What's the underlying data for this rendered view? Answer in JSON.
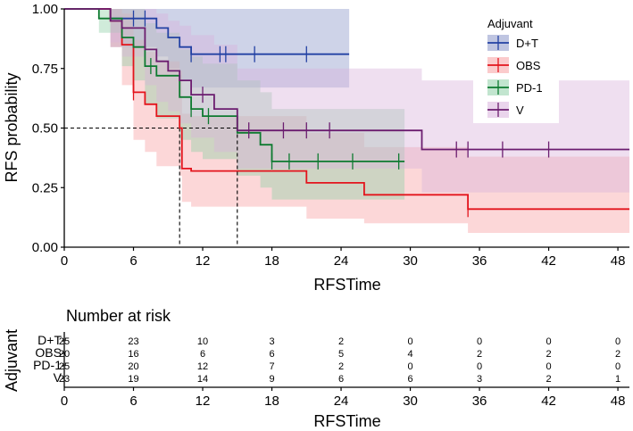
{
  "chart_data": {
    "type": "line",
    "subtype": "kaplan-meier",
    "xlabel": "RFSTime",
    "ylabel": "RFS probability",
    "xlim": [
      0,
      49
    ],
    "ylim": [
      0,
      1
    ],
    "xticks": [
      "0",
      "6",
      "12",
      "18",
      "24",
      "30",
      "36",
      "42",
      "48"
    ],
    "yticks": [
      "0.00",
      "0.25",
      "0.50",
      "0.75",
      "1.00"
    ],
    "legend": {
      "title": "Adjuvant",
      "position": "top-right"
    },
    "median_lines": [
      {
        "y": 0.5,
        "x_end": 15
      },
      {
        "x": 10,
        "y_top": 0.5
      },
      {
        "x": 15,
        "y_top": 0.5
      }
    ],
    "series": [
      {
        "name": "D+T",
        "color": "#2341a3",
        "fill": "#8a96c9",
        "steps": [
          [
            0,
            1
          ],
          [
            4,
            0.96
          ],
          [
            8,
            0.92
          ],
          [
            9,
            0.88
          ],
          [
            10,
            0.84
          ],
          [
            11,
            0.81
          ],
          [
            24,
            0.81
          ]
        ],
        "x_end": 24.7,
        "band": [
          [
            0,
            1,
            1
          ],
          [
            4,
            1,
            0.84
          ],
          [
            8,
            1,
            0.8
          ],
          [
            9,
            1,
            0.75
          ],
          [
            10,
            1,
            0.7
          ],
          [
            11,
            1,
            0.67
          ],
          [
            24,
            1,
            0.67
          ]
        ],
        "censors": [
          6,
          7,
          11,
          13.5,
          14,
          16.5,
          21
        ]
      },
      {
        "name": "OBS",
        "color": "#e3141c",
        "fill": "#f8a0a3",
        "steps": [
          [
            0,
            1
          ],
          [
            4,
            0.95
          ],
          [
            5,
            0.85
          ],
          [
            6,
            0.65
          ],
          [
            7,
            0.6
          ],
          [
            8,
            0.55
          ],
          [
            10,
            0.5
          ],
          [
            10.2,
            0.33
          ],
          [
            11,
            0.32
          ],
          [
            21,
            0.27
          ],
          [
            26,
            0.22
          ],
          [
            35,
            0.16
          ],
          [
            49,
            0.16
          ]
        ],
        "x_end": 49,
        "band": [
          [
            0,
            1,
            1
          ],
          [
            4,
            1,
            0.84
          ],
          [
            5,
            0.98,
            0.68
          ],
          [
            6,
            0.87,
            0.45
          ],
          [
            7,
            0.82,
            0.4
          ],
          [
            8,
            0.78,
            0.34
          ],
          [
            10,
            0.74,
            0.3
          ],
          [
            10.2,
            0.56,
            0.19
          ],
          [
            11,
            0.55,
            0.17
          ],
          [
            21,
            0.48,
            0.12
          ],
          [
            26,
            0.42,
            0.1
          ],
          [
            35,
            0.38,
            0.06
          ],
          [
            49,
            0.38,
            0.06
          ]
        ],
        "censors": [
          6,
          35
        ]
      },
      {
        "name": "PD-1",
        "color": "#0e7a30",
        "fill": "#8fd0a8",
        "steps": [
          [
            0,
            1
          ],
          [
            3,
            0.96
          ],
          [
            5,
            0.88
          ],
          [
            6,
            0.84
          ],
          [
            7,
            0.76
          ],
          [
            8,
            0.72
          ],
          [
            10,
            0.63
          ],
          [
            11,
            0.58
          ],
          [
            12,
            0.55
          ],
          [
            15,
            0.48
          ],
          [
            17,
            0.43
          ],
          [
            18,
            0.36
          ],
          [
            29,
            0.36
          ]
        ],
        "x_end": 29.5,
        "band": [
          [
            0,
            1,
            1
          ],
          [
            3,
            1,
            0.9
          ],
          [
            5,
            1,
            0.76
          ],
          [
            6,
            1,
            0.7
          ],
          [
            7,
            0.94,
            0.6
          ],
          [
            8,
            0.9,
            0.54
          ],
          [
            10,
            0.83,
            0.45
          ],
          [
            11,
            0.8,
            0.4
          ],
          [
            12,
            0.77,
            0.37
          ],
          [
            15,
            0.7,
            0.3
          ],
          [
            17,
            0.65,
            0.25
          ],
          [
            18,
            0.58,
            0.2
          ],
          [
            29,
            0.58,
            0.2
          ]
        ],
        "censors": [
          7.5,
          11,
          12.5,
          18,
          19.5,
          22,
          25,
          29
        ]
      },
      {
        "name": "V",
        "color": "#6b1d6f",
        "fill": "#d9b2dc",
        "steps": [
          [
            0,
            1
          ],
          [
            4,
            0.95
          ],
          [
            5,
            0.92
          ],
          [
            7,
            0.83
          ],
          [
            8,
            0.78
          ],
          [
            9,
            0.74
          ],
          [
            10,
            0.7
          ],
          [
            11,
            0.64
          ],
          [
            13,
            0.58
          ],
          [
            15,
            0.49
          ],
          [
            31,
            0.41
          ],
          [
            49,
            0.41
          ]
        ],
        "x_end": 49,
        "band": [
          [
            0,
            1,
            1
          ],
          [
            4,
            1,
            0.86
          ],
          [
            5,
            1,
            0.8
          ],
          [
            7,
            1,
            0.68
          ],
          [
            8,
            0.98,
            0.61
          ],
          [
            9,
            0.95,
            0.57
          ],
          [
            10,
            0.93,
            0.52
          ],
          [
            11,
            0.89,
            0.46
          ],
          [
            13,
            0.85,
            0.4
          ],
          [
            15,
            0.75,
            0.33
          ],
          [
            31,
            0.7,
            0.23
          ],
          [
            49,
            0.7,
            0.23
          ]
        ],
        "censors": [
          12,
          16,
          19,
          21,
          23,
          34,
          35,
          38,
          42
        ]
      }
    ],
    "risk_table": {
      "title": "Number at risk",
      "ylabel": "Adjuvant",
      "xlabel": "RFSTime",
      "times": [
        0,
        6,
        12,
        18,
        24,
        30,
        36,
        42,
        48
      ],
      "rows": [
        {
          "name": "D+T",
          "values": [
            25,
            23,
            10,
            3,
            2,
            0,
            0,
            0,
            0
          ]
        },
        {
          "name": "OBS",
          "values": [
            20,
            16,
            6,
            6,
            5,
            4,
            2,
            2,
            2
          ]
        },
        {
          "name": "PD-1",
          "values": [
            25,
            20,
            12,
            7,
            2,
            0,
            0,
            0,
            0
          ]
        },
        {
          "name": "V",
          "values": [
            23,
            19,
            14,
            9,
            6,
            6,
            3,
            2,
            1
          ]
        }
      ]
    }
  }
}
